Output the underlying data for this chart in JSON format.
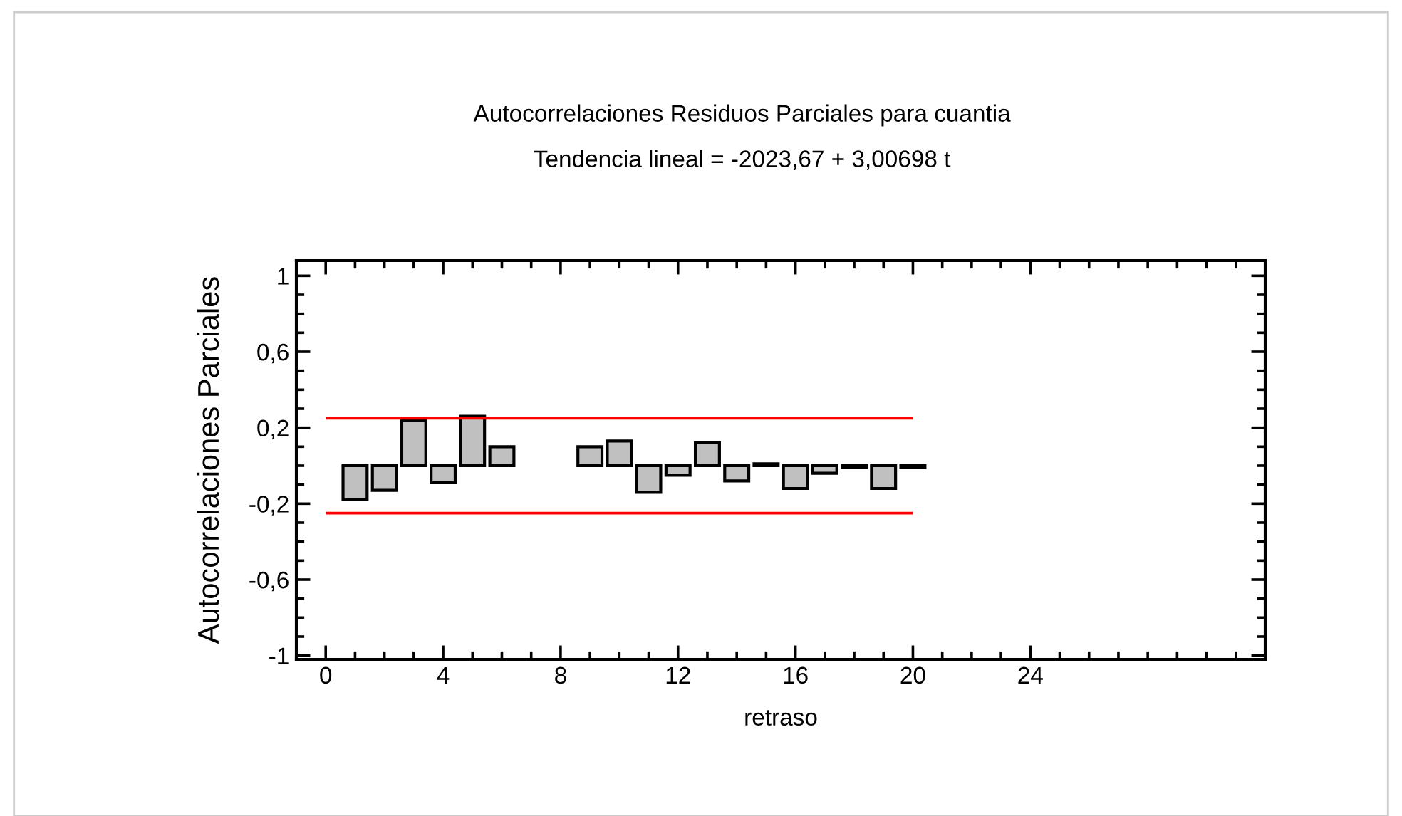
{
  "chart_data": {
    "type": "bar",
    "title": "Autocorrelaciones Residuos Parciales para cuantia",
    "subtitle": "Tendencia lineal = -2023,67 + 3,00698 t",
    "xlabel": "retraso",
    "ylabel": "Autocorrelaciones Parciales",
    "x": [
      1,
      2,
      3,
      4,
      5,
      6,
      7,
      8,
      9,
      10,
      11,
      12,
      13,
      14,
      15,
      16,
      17,
      18,
      19,
      20
    ],
    "values": [
      -0.18,
      -0.13,
      0.24,
      -0.09,
      0.26,
      0.1,
      null,
      null,
      0.1,
      0.13,
      -0.14,
      -0.05,
      0.12,
      -0.08,
      0.01,
      -0.12,
      -0.04,
      -0.01,
      -0.12,
      -0.01
    ],
    "color": "#c0c0c0",
    "xlim": [
      -1,
      32
    ],
    "xticks": [
      0,
      4,
      8,
      12,
      16,
      20,
      24
    ],
    "ylim": [
      -1.02,
      1.08
    ],
    "yticks": [
      {
        "value": -1,
        "label": "-1"
      },
      {
        "value": -0.6,
        "label": "-0,6"
      },
      {
        "value": -0.2,
        "label": "-0,2"
      },
      {
        "value": 0.2,
        "label": "0,2"
      },
      {
        "value": 0.6,
        "label": "0,6"
      },
      {
        "value": 1,
        "label": "1"
      }
    ],
    "ref_lines": [
      {
        "axis": "y",
        "value": 0.25,
        "color": "#ff0000"
      },
      {
        "axis": "y",
        "value": -0.25,
        "color": "#ff0000"
      }
    ],
    "grid": false,
    "legend": false
  }
}
